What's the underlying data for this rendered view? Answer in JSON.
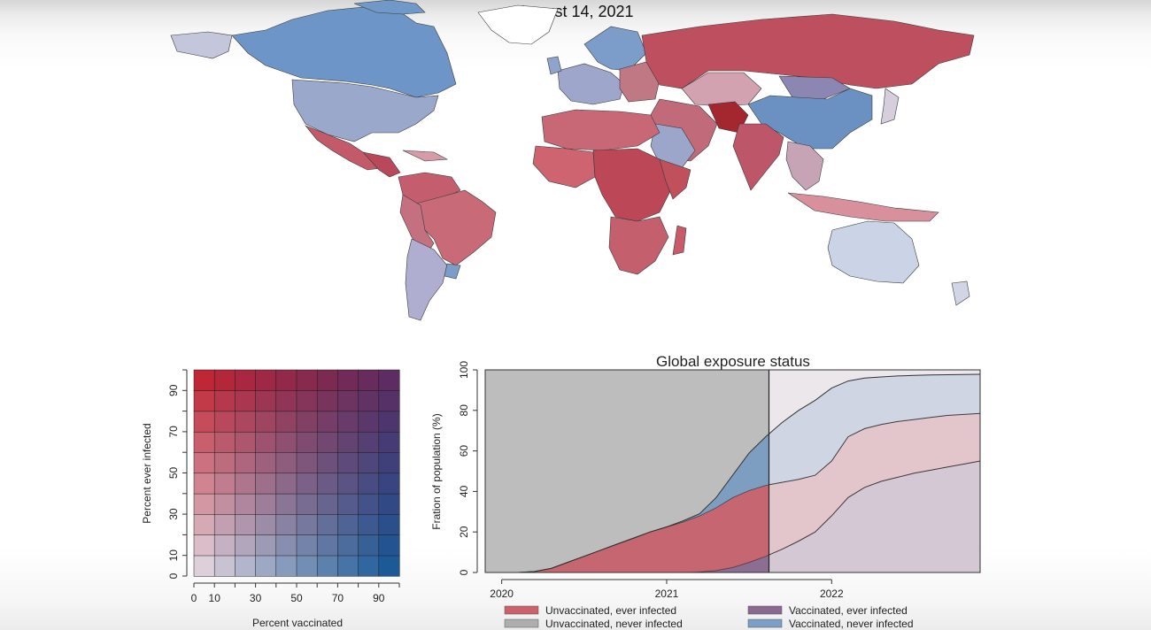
{
  "date_title": "August 14, 2021",
  "colors": {
    "unvacc_ever": "#c8505c",
    "unvacc_never": "#a6a6a6",
    "vacc_ever": "#7e5a86",
    "vacc_never": "#6e96c2"
  },
  "chart_data": [
    {
      "type": "heatmap",
      "title": "",
      "xlabel": "Percent vaccinated",
      "ylabel": "Percent ever infected",
      "x_ticks": [
        "0",
        "10",
        "30",
        "50",
        "70",
        "90"
      ],
      "y_ticks": [
        "0",
        "10",
        "30",
        "50",
        "70",
        "90"
      ],
      "xlim": [
        0,
        100
      ],
      "ylim": [
        0,
        100
      ],
      "bins": 10,
      "corner_colors": {
        "low_vacc_low_inf": "#eae0e7",
        "high_vacc_low_inf": "#0d5596",
        "low_vacc_high_inf": "#c21c2a",
        "high_vacc_high_inf": "#5a2a62"
      }
    },
    {
      "type": "area",
      "title": "Global exposure status",
      "xlabel": "",
      "ylabel": "Fration of population (%)",
      "x_ticks": [
        "2020",
        "2021",
        "2022"
      ],
      "y_ticks": [
        "0",
        "20",
        "40",
        "60",
        "80",
        "100"
      ],
      "xlim": [
        2019.9,
        2022.9
      ],
      "ylim": [
        0,
        100
      ],
      "current_date": 2021.62,
      "x": [
        2020.0,
        2020.1,
        2020.2,
        2020.3,
        2020.4,
        2020.5,
        2020.6,
        2020.7,
        2020.8,
        2020.9,
        2021.0,
        2021.1,
        2021.2,
        2021.3,
        2021.4,
        2021.5,
        2021.6,
        2021.7,
        2021.8,
        2021.9,
        2022.0,
        2022.1,
        2022.2,
        2022.3,
        2022.4,
        2022.5,
        2022.6,
        2022.7,
        2022.8,
        2022.9
      ],
      "series": [
        {
          "name": "Vaccinated, ever infected",
          "key": "vacc_ever",
          "boundary": [
            0,
            0,
            0,
            0,
            0,
            0,
            0,
            0,
            0,
            0,
            0,
            0,
            0.3,
            1,
            2.5,
            5,
            8,
            11.5,
            15.5,
            20,
            28,
            37,
            42,
            45,
            47,
            49,
            50.5,
            52,
            53.5,
            55
          ]
        },
        {
          "name": "Unvaccinated, ever infected",
          "key": "unvacc_ever",
          "boundary": [
            0,
            0,
            0.5,
            2,
            5,
            8,
            11,
            14,
            17,
            20,
            22.5,
            25,
            28,
            32,
            37,
            40.5,
            43,
            44.5,
            46,
            48,
            55,
            67,
            71,
            73,
            74.5,
            75.5,
            76.5,
            77.5,
            78,
            78.5
          ]
        },
        {
          "name": "Vaccinated, never infected",
          "key": "vacc_never",
          "boundary": [
            0,
            0,
            0.5,
            2,
            5,
            8,
            11,
            14,
            17,
            20,
            22.5,
            25.5,
            29,
            37,
            48,
            59,
            67,
            74,
            80,
            85,
            91,
            94.5,
            96,
            96.5,
            97,
            97.3,
            97.5,
            97.6,
            97.7,
            97.8
          ]
        },
        {
          "name": "Unvaccinated, never infected",
          "key": "unvacc_never",
          "boundary": [
            100,
            100,
            100,
            100,
            100,
            100,
            100,
            100,
            100,
            100,
            100,
            100,
            100,
            100,
            100,
            100,
            100,
            100,
            100,
            100,
            100,
            100,
            100,
            100,
            100,
            100,
            100,
            100,
            100,
            100
          ]
        }
      ],
      "legend": [
        {
          "name": "Unvaccinated, ever infected",
          "key": "unvacc_ever"
        },
        {
          "name": "Vaccinated, ever infected",
          "key": "vacc_ever"
        },
        {
          "name": "Unvaccinated, never infected",
          "key": "unvacc_never"
        },
        {
          "name": "Vaccinated, never infected",
          "key": "vacc_never"
        }
      ],
      "legend_position": "bottom"
    }
  ]
}
